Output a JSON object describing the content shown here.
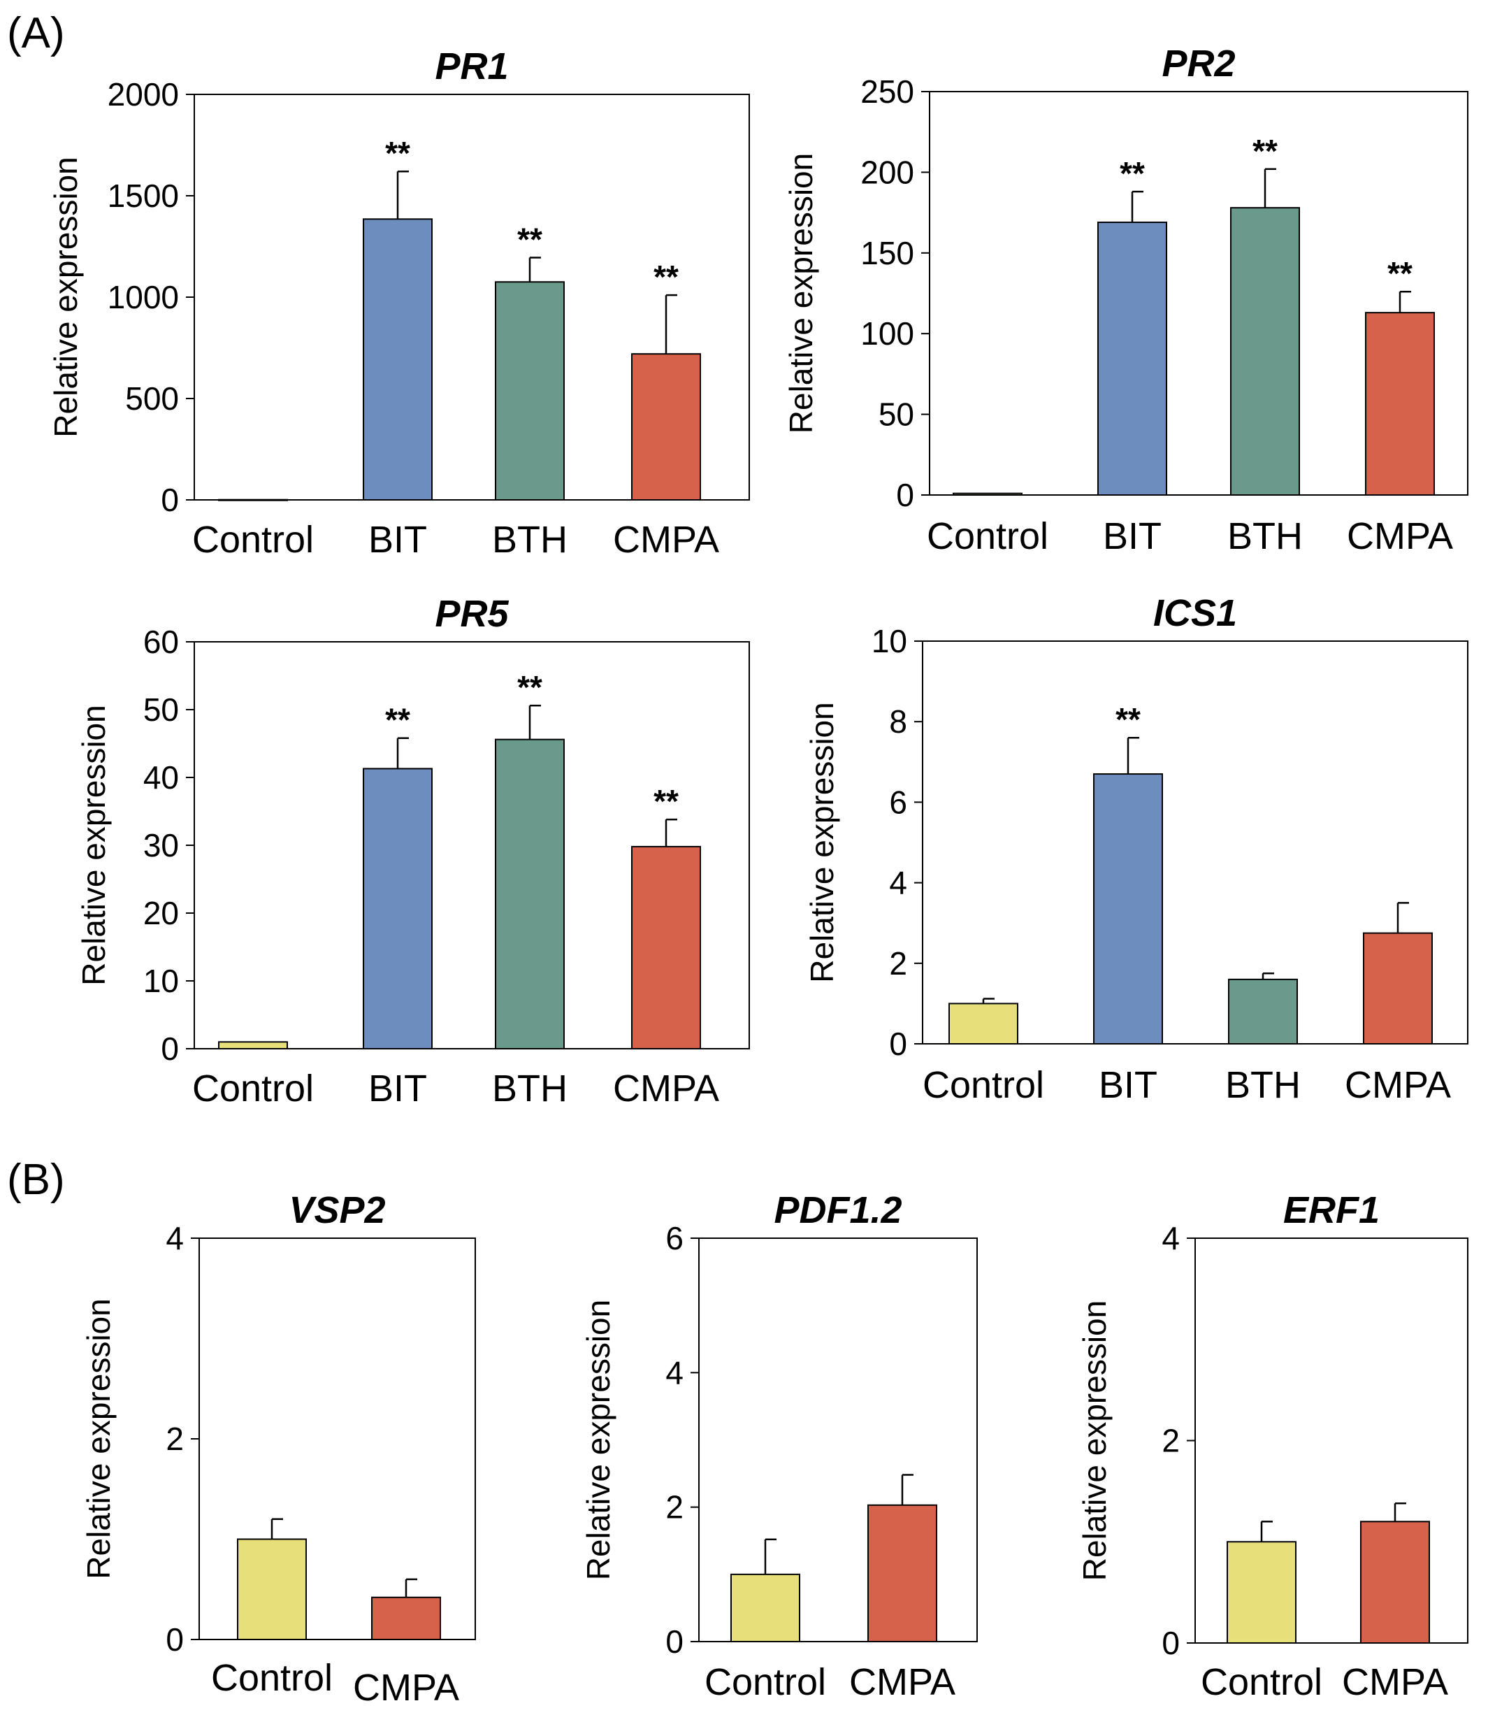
{
  "panels": {
    "a": "(A)",
    "b": "(B)"
  },
  "colors": {
    "Control": "#e6df7a",
    "BIT": "#6d8dbe",
    "BTH": "#6a9a8c",
    "CMPA": "#d6624b",
    "axis": "#000000"
  },
  "chart_data": [
    {
      "type": "bar",
      "panel": "A",
      "title": "PR1",
      "categories": [
        "Control",
        "BIT",
        "BTH",
        "CMPA"
      ],
      "values": [
        1,
        1385,
        1075,
        720
      ],
      "errors": [
        0,
        235,
        120,
        290
      ],
      "significance": [
        "",
        "**",
        "**",
        "**"
      ],
      "xlabel": "",
      "ylabel": "Relative expression",
      "ylim": [
        0,
        2000
      ],
      "yticks": [
        0,
        500,
        1000,
        1500,
        2000
      ]
    },
    {
      "type": "bar",
      "panel": "A",
      "title": "PR2",
      "categories": [
        "Control",
        "BIT",
        "BTH",
        "CMPA"
      ],
      "values": [
        1,
        169,
        178,
        113
      ],
      "errors": [
        0,
        19,
        24,
        13
      ],
      "significance": [
        "",
        "**",
        "**",
        "**"
      ],
      "xlabel": "",
      "ylabel": "Relative expression",
      "ylim": [
        0,
        250
      ],
      "yticks": [
        0,
        50,
        100,
        150,
        200,
        250
      ]
    },
    {
      "type": "bar",
      "panel": "A",
      "title": "PR5",
      "categories": [
        "Control",
        "BIT",
        "BTH",
        "CMPA"
      ],
      "values": [
        1,
        41.3,
        45.6,
        29.8
      ],
      "errors": [
        0,
        4.5,
        5.0,
        4.0
      ],
      "significance": [
        "",
        "**",
        "**",
        "**"
      ],
      "xlabel": "",
      "ylabel": "Relative expression",
      "ylim": [
        0,
        60
      ],
      "yticks": [
        0,
        10,
        20,
        30,
        40,
        50,
        60
      ]
    },
    {
      "type": "bar",
      "panel": "A",
      "title": "ICS1",
      "categories": [
        "Control",
        "BIT",
        "BTH",
        "CMPA"
      ],
      "values": [
        1,
        6.7,
        1.6,
        2.75
      ],
      "errors": [
        0.12,
        0.9,
        0.15,
        0.75
      ],
      "significance": [
        "",
        "**",
        "",
        ""
      ],
      "xlabel": "",
      "ylabel": "Relative expression",
      "ylim": [
        0,
        10
      ],
      "yticks": [
        0,
        2,
        4,
        6,
        8,
        10
      ]
    },
    {
      "type": "bar",
      "panel": "B",
      "title": "VSP2",
      "categories": [
        "Control",
        "CMPA"
      ],
      "values": [
        1.0,
        0.42
      ],
      "errors": [
        0.2,
        0.18
      ],
      "significance": [
        "",
        ""
      ],
      "xlabel": "",
      "ylabel": "Relative expression",
      "ylim": [
        0,
        4
      ],
      "yticks": [
        0,
        2,
        4
      ]
    },
    {
      "type": "bar",
      "panel": "B",
      "title": "PDF1.2",
      "categories": [
        "Control",
        "CMPA"
      ],
      "values": [
        1.0,
        2.03
      ],
      "errors": [
        0.52,
        0.45
      ],
      "significance": [
        "",
        ""
      ],
      "xlabel": "",
      "ylabel": "Relative expression",
      "ylim": [
        0,
        6
      ],
      "yticks": [
        0,
        2,
        4,
        6
      ]
    },
    {
      "type": "bar",
      "panel": "B",
      "title": "ERF1",
      "categories": [
        "Control",
        "CMPA"
      ],
      "values": [
        1.0,
        1.2
      ],
      "errors": [
        0.2,
        0.18
      ],
      "significance": [
        "",
        ""
      ],
      "xlabel": "",
      "ylabel": "Relative expression",
      "ylim": [
        0,
        4
      ],
      "yticks": [
        0,
        2,
        4
      ]
    }
  ]
}
